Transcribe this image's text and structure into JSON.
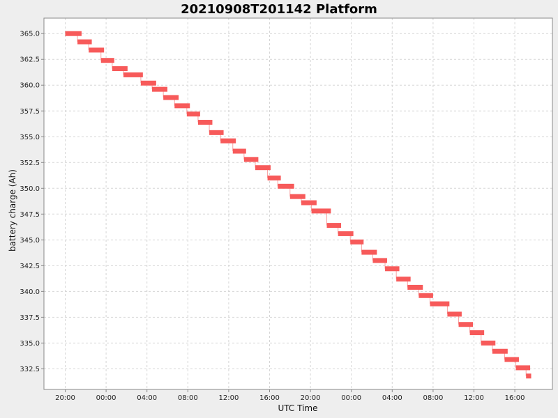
{
  "chart_data": {
    "type": "line",
    "title": "20210908T201142 Platform",
    "xlabel": "UTC Time",
    "ylabel": "battery charge (Ah)",
    "ylim": [
      330.5,
      366.5
    ],
    "y_ticks": [
      "332.5",
      "335.0",
      "337.5",
      "340.0",
      "342.5",
      "345.0",
      "347.5",
      "350.0",
      "352.5",
      "355.0",
      "357.5",
      "360.0",
      "362.5",
      "365.0"
    ],
    "x_tick_labels": [
      "20:00",
      "00:00",
      "04:00",
      "08:00",
      "12:00",
      "16:00",
      "20:00",
      "00:00",
      "04:00",
      "08:00",
      "12:00",
      "16:00"
    ],
    "grid": true,
    "series_color": "#f75a5a",
    "steps": [
      [
        20.0,
        21.6,
        365.0
      ],
      [
        21.2,
        22.6,
        364.2
      ],
      [
        22.3,
        23.8,
        363.4
      ],
      [
        23.5,
        24.8,
        362.4
      ],
      [
        24.6,
        26.1,
        361.6
      ],
      [
        25.7,
        27.6,
        361.0
      ],
      [
        27.4,
        28.9,
        360.2
      ],
      [
        28.5,
        30.0,
        359.6
      ],
      [
        29.6,
        31.1,
        358.8
      ],
      [
        30.7,
        32.2,
        358.0
      ],
      [
        31.9,
        33.2,
        357.2
      ],
      [
        33.0,
        34.4,
        356.4
      ],
      [
        34.1,
        35.5,
        355.4
      ],
      [
        35.2,
        36.7,
        354.6
      ],
      [
        36.4,
        37.7,
        353.6
      ],
      [
        37.5,
        38.9,
        352.8
      ],
      [
        38.6,
        40.1,
        352.0
      ],
      [
        39.8,
        41.1,
        351.0
      ],
      [
        40.8,
        42.4,
        350.2
      ],
      [
        42.0,
        43.5,
        349.2
      ],
      [
        43.1,
        44.6,
        348.6
      ],
      [
        44.1,
        46.0,
        347.8
      ],
      [
        45.6,
        47.0,
        346.4
      ],
      [
        46.7,
        48.2,
        345.6
      ],
      [
        47.9,
        49.2,
        344.8
      ],
      [
        49.0,
        50.5,
        343.8
      ],
      [
        50.1,
        51.5,
        343.0
      ],
      [
        51.3,
        52.7,
        342.2
      ],
      [
        52.4,
        53.8,
        341.2
      ],
      [
        53.5,
        55.0,
        340.4
      ],
      [
        54.6,
        56.0,
        339.6
      ],
      [
        55.7,
        57.6,
        338.8
      ],
      [
        57.4,
        58.8,
        337.8
      ],
      [
        58.5,
        59.9,
        336.8
      ],
      [
        59.6,
        61.0,
        336.0
      ],
      [
        60.7,
        62.1,
        335.0
      ],
      [
        61.8,
        63.3,
        334.2
      ],
      [
        63.0,
        64.4,
        333.4
      ],
      [
        64.1,
        65.5,
        332.6
      ],
      [
        65.1,
        65.6,
        331.8
      ]
    ]
  }
}
